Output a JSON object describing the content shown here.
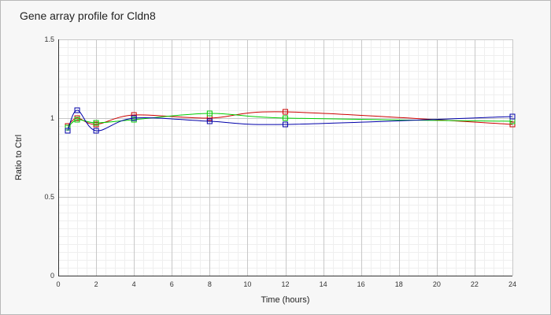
{
  "chart_data": {
    "type": "line",
    "title": "Gene array profile for Cldn8",
    "xlabel": "Time (hours)",
    "ylabel": "Ratio to Ctrl",
    "xlim": [
      0,
      24
    ],
    "ylim": [
      0,
      1.5
    ],
    "x_ticks": [
      0,
      2,
      4,
      6,
      8,
      10,
      12,
      14,
      16,
      18,
      20,
      22,
      24
    ],
    "y_ticks": [
      0,
      0.5,
      1,
      1.5
    ],
    "y_tick_labels": [
      "0",
      "0.5",
      "1",
      "1.5"
    ],
    "grid": true,
    "marker": "open-square",
    "series": [
      {
        "color": "#cc0000",
        "x": [
          0.5,
          1,
          2,
          4,
          8,
          12,
          24
        ],
        "y": [
          0.95,
          1.0,
          0.96,
          1.02,
          1.0,
          1.04,
          0.96
        ]
      },
      {
        "color": "#00cc00",
        "x": [
          0.5,
          1,
          2,
          4,
          8,
          12,
          24
        ],
        "y": [
          0.94,
          0.99,
          0.97,
          0.99,
          1.03,
          1.0,
          0.98
        ]
      },
      {
        "color": "#0000aa",
        "x": [
          0.5,
          1,
          2,
          4,
          8,
          12,
          24
        ],
        "y": [
          0.92,
          1.05,
          0.92,
          1.0,
          0.98,
          0.96,
          1.01
        ]
      }
    ]
  }
}
